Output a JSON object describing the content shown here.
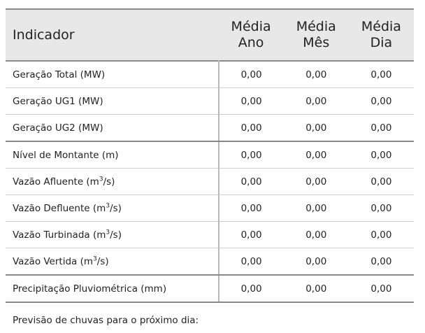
{
  "table": {
    "columns": {
      "indicator": "Indicador",
      "year": [
        "Média",
        "Ano"
      ],
      "month": [
        "Média",
        "Mês"
      ],
      "day": [
        "Média",
        "Dia"
      ]
    },
    "rows": [
      {
        "label": "Geração Total (MW)",
        "unit_sup": "",
        "unit_tail": "",
        "ano": "0,00",
        "mes": "0,00",
        "dia": "0,00"
      },
      {
        "label": "Geração UG1 (MW)",
        "unit_sup": "",
        "unit_tail": "",
        "ano": "0,00",
        "mes": "0,00",
        "dia": "0,00"
      },
      {
        "label": "Geração UG2 (MW)",
        "unit_sup": "",
        "unit_tail": "",
        "ano": "0,00",
        "mes": "0,00",
        "dia": "0,00"
      },
      {
        "label": "Nível de Montante (m)",
        "unit_sup": "",
        "unit_tail": "",
        "ano": "0,00",
        "mes": "0,00",
        "dia": "0,00"
      },
      {
        "label": "Vazão Afluente (m",
        "unit_sup": "3",
        "unit_tail": "/s)",
        "ano": "0,00",
        "mes": "0,00",
        "dia": "0,00"
      },
      {
        "label": "Vazão Defluente (m",
        "unit_sup": "3",
        "unit_tail": "/s)",
        "ano": "0,00",
        "mes": "0,00",
        "dia": "0,00"
      },
      {
        "label": "Vazão Turbinada (m",
        "unit_sup": "3",
        "unit_tail": "/s)",
        "ano": "0,00",
        "mes": "0,00",
        "dia": "0,00"
      },
      {
        "label": "Vazão Vertida (m",
        "unit_sup": "3",
        "unit_tail": "/s)",
        "ano": "0,00",
        "mes": "0,00",
        "dia": "0,00"
      },
      {
        "label": "Precipitação Pluviométrica (mm)",
        "unit_sup": "",
        "unit_tail": "",
        "ano": "0,00",
        "mes": "0,00",
        "dia": "0,00"
      }
    ]
  },
  "forecast": {
    "label": "Previsão de chuvas para o próximo dia:"
  }
}
